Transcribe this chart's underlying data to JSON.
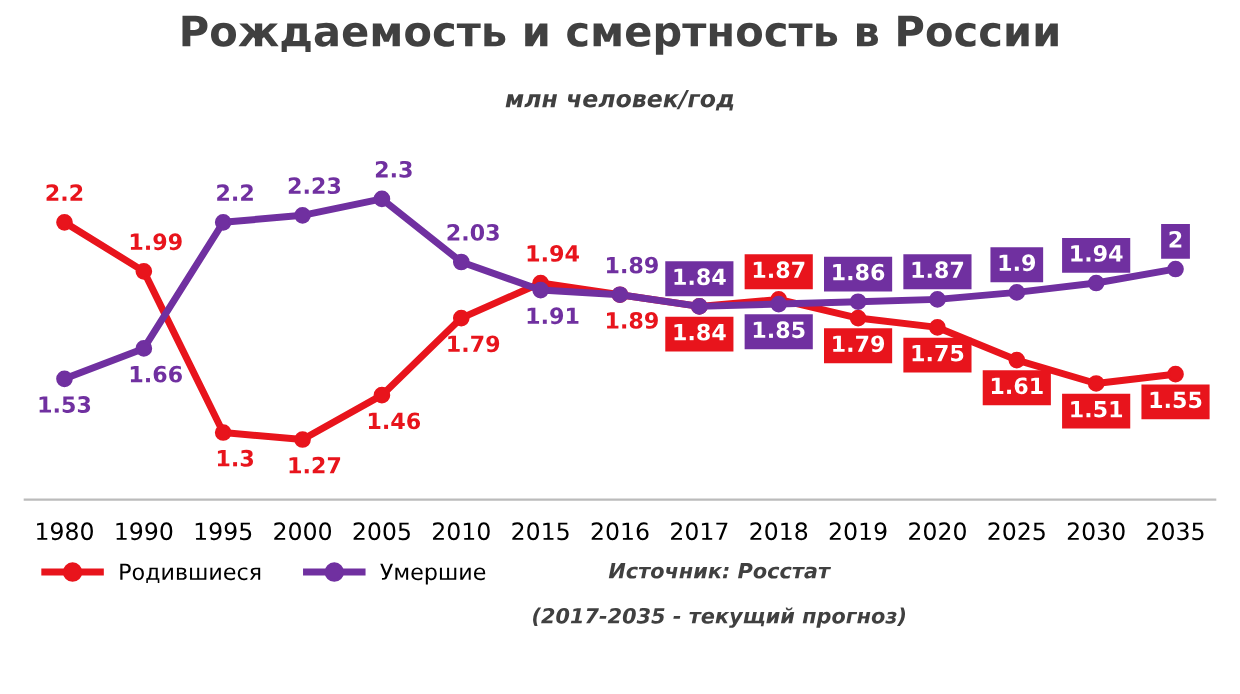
{
  "chart_data": {
    "type": "line",
    "title": "Рождаемость и смертность в России",
    "subtitle": "млн человек/год",
    "categories": [
      "1980",
      "1990",
      "1995",
      "2000",
      "2005",
      "2010",
      "2015",
      "2016",
      "2017",
      "2018",
      "2019",
      "2020",
      "2025",
      "2030",
      "2035"
    ],
    "series": [
      {
        "name": "Родившиеся",
        "color": "#e8141c",
        "values": [
          2.2,
          1.99,
          1.3,
          1.27,
          1.46,
          1.79,
          1.94,
          1.89,
          1.84,
          1.87,
          1.79,
          1.75,
          1.61,
          1.51,
          1.55
        ]
      },
      {
        "name": "Умершие",
        "color": "#7030a0",
        "values": [
          1.53,
          1.66,
          2.2,
          2.23,
          2.3,
          2.03,
          1.91,
          1.89,
          1.84,
          1.85,
          1.86,
          1.87,
          1.9,
          1.94,
          2
        ]
      }
    ],
    "annotations": [
      "Источник: Росстат",
      "(2017-2035 - текущий прогноз)"
    ],
    "data_labels": true,
    "legend": "bottom left",
    "marker": "circle",
    "line_style": "solid",
    "tick_labels": "x"
  }
}
